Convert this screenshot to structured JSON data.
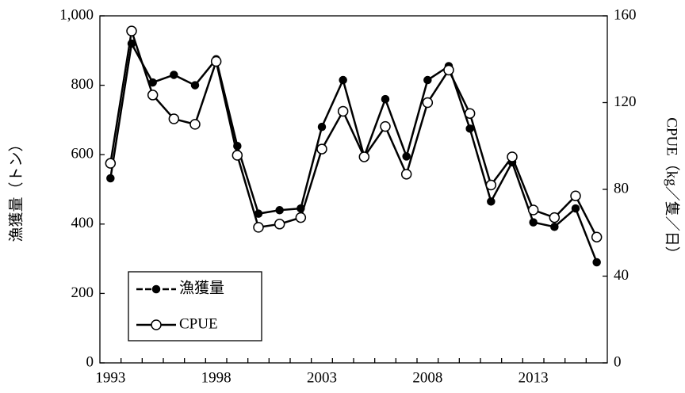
{
  "chart_data": {
    "type": "line",
    "x": [
      1993,
      1994,
      1995,
      1996,
      1997,
      1998,
      1999,
      2000,
      2001,
      2002,
      2003,
      2004,
      2005,
      2006,
      2007,
      2008,
      2009,
      2010,
      2011,
      2012,
      2013,
      2014,
      2015,
      2016
    ],
    "xlim": [
      1992.5,
      2016.5
    ],
    "xticks": [
      1993,
      1998,
      2003,
      2008,
      2013
    ],
    "ylabel": "漁獲量（トン）",
    "y2label": "CPUE（kg／隻／日）",
    "ylim": [
      0,
      1000
    ],
    "yticks": [
      0,
      200,
      400,
      600,
      800,
      {
        "value": 1000,
        "label": "1,000"
      }
    ],
    "y2lim": [
      0,
      160
    ],
    "y2ticks": [
      0,
      40,
      80,
      120,
      160
    ],
    "legend": "lower left",
    "series": [
      {
        "name": "漁獲量",
        "color": "#000000",
        "marker": "filled",
        "values": [
          532,
          920,
          808,
          830,
          800,
          875,
          625,
          430,
          440,
          445,
          680,
          815,
          595,
          760,
          595,
          815,
          855,
          675,
          465,
          578,
          405,
          392,
          445,
          290
        ]
      },
      {
        "name": "CPUE",
        "color": "#000000",
        "marker": "open",
        "axis": "y2",
        "values": [
          92,
          153,
          123.5,
          112.5,
          110,
          139,
          95.7,
          62.5,
          64,
          67,
          98.6,
          116,
          95,
          109,
          87,
          120,
          135,
          115,
          82,
          95,
          70.5,
          67,
          77,
          58
        ]
      }
    ]
  }
}
